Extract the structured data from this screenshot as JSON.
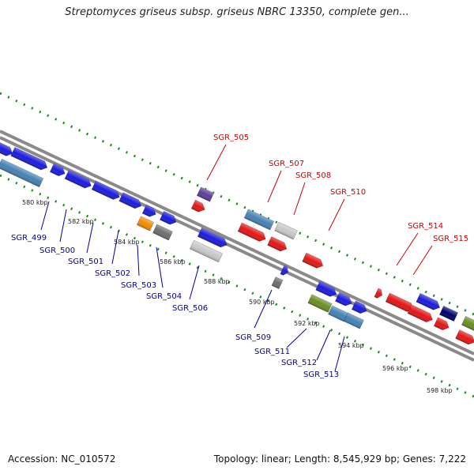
{
  "title": "Streptomyces griseus subsp. griseus NBRC 13350, complete gen...",
  "footer": {
    "accession": "Accession: NC_010572",
    "summary": "Topology: linear; Length: 8,545,929 bp; Genes: 7,222"
  },
  "colors": {
    "label_forward": "#cc0000",
    "label_reverse": "#00009e",
    "tick": "#1a8a1a",
    "backbone": "#8a8a8a"
  },
  "ticks": [
    "580 kbp",
    "582 kbp",
    "584 kbp",
    "586 kbp",
    "588 kbp",
    "590 kbp",
    "592 kbp",
    "594 kbp",
    "596 kbp",
    "598 kbp"
  ],
  "forward_labels": [
    "SGR_505",
    "SGR_507",
    "SGR_508",
    "SGR_510",
    "SGR_514",
    "SGR_515"
  ],
  "reverse_labels": [
    "SGR_499",
    "SGR_500",
    "SGR_501",
    "SGR_502",
    "SGR_503",
    "SGR_504",
    "SGR_506",
    "SGR_509",
    "SGR_511",
    "SGR_512",
    "SGR_513"
  ]
}
